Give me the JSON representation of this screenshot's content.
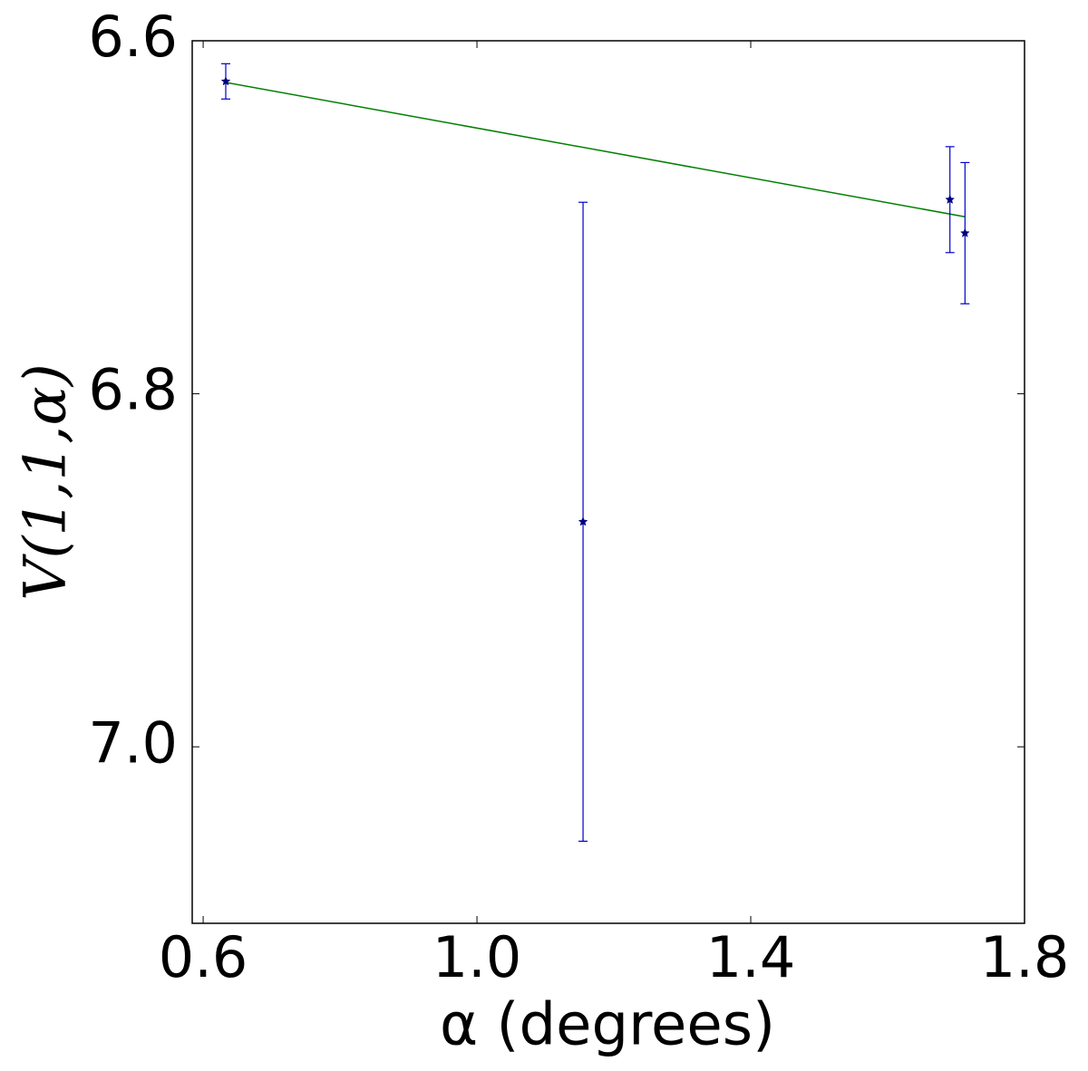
{
  "chart_data": {
    "type": "scatter",
    "x_label": "α (degrees)",
    "y_label": "V(1,1,α)",
    "x": [
      0.633,
      1.155,
      1.691,
      1.713
    ],
    "values": [
      6.623,
      6.8725,
      6.69,
      6.709
    ],
    "errors": [
      0.01,
      0.181,
      0.03,
      0.04
    ],
    "color": "#0000cc",
    "fit": {
      "x": [
        0.633,
        1.713
      ],
      "values": [
        6.6236,
        6.6997
      ],
      "color": "#008000"
    },
    "xlim": [
      0.584,
      1.8
    ],
    "ylim": [
      6.6,
      7.1
    ],
    "y_inverted": true,
    "xticks": [
      0.6,
      {
        "value": 1,
        "label": "1.0"
      },
      1.4,
      1.8
    ],
    "yticks": [
      6.6,
      6.8,
      {
        "value": 7,
        "label": "7.0"
      }
    ],
    "grid": false
  }
}
